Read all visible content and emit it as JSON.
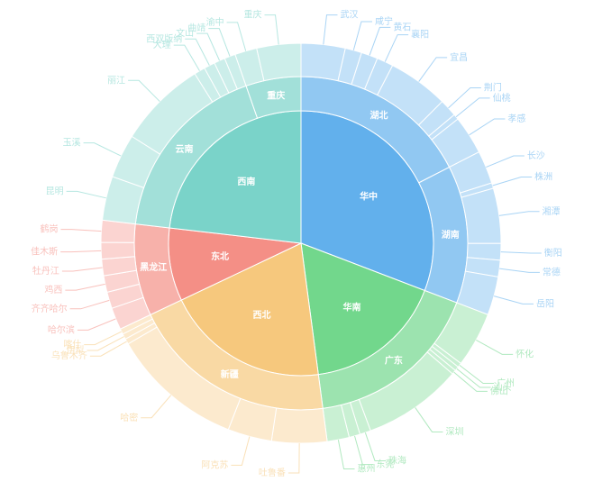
{
  "chart_data": {
    "type": "sunburst",
    "title": "",
    "colors": {
      "华中": "#62b0ec",
      "华南": "#72d78c",
      "西北": "#f6c87d",
      "东北": "#f48f86",
      "西南": "#7ad3c9"
    },
    "regions": [
      {
        "name": "华中",
        "provinces": [
          {
            "name": "湖北",
            "cities": [
              {
                "name": "武汉",
                "value": 4
              },
              {
                "name": "咸宁",
                "value": 1.5
              },
              {
                "name": "黄石",
                "value": 1.5
              },
              {
                "name": "襄阳",
                "value": 1.5
              },
              {
                "name": "宜昌",
                "value": 5.5
              },
              {
                "name": "荆门",
                "value": 1.6
              },
              {
                "name": "仙桃",
                "value": 0.5
              },
              {
                "name": "孝感",
                "value": 3.5
              }
            ]
          },
          {
            "name": "湖南",
            "cities": [
              {
                "name": "长沙",
                "value": 3
              },
              {
                "name": "株洲",
                "value": 0.5
              },
              {
                "name": "湘潭",
                "value": 5
              },
              {
                "name": "衡阳",
                "value": 1.5
              },
              {
                "name": "常德",
                "value": 1.5
              },
              {
                "name": "岳阳",
                "value": 3.5
              }
            ]
          }
        ]
      },
      {
        "name": "华南",
        "provinces": [
          {
            "name": "广东",
            "cities": [
              {
                "name": "怀化",
                "value": 5
              },
              {
                "name": "广州",
                "value": 0.4
              },
              {
                "name": "汕头",
                "value": 0.4
              },
              {
                "name": "佛山",
                "value": 0.4
              },
              {
                "name": "深圳",
                "value": 9
              },
              {
                "name": "珠海",
                "value": 1
              },
              {
                "name": "东莞",
                "value": 1
              },
              {
                "name": "惠州",
                "value": 2
              }
            ]
          }
        ]
      },
      {
        "name": "西北",
        "provinces": [
          {
            "name": "新疆",
            "cities": [
              {
                "name": "吐鲁番",
                "value": 5
              },
              {
                "name": "阿克苏",
                "value": 4
              },
              {
                "name": "哈密",
                "value": 12
              },
              {
                "name": "乌鲁木齐",
                "value": 0.5
              },
              {
                "name": "伊犁",
                "value": 0.5
              },
              {
                "name": "喀什",
                "value": 0.5
              }
            ]
          }
        ]
      },
      {
        "name": "东北",
        "provinces": [
          {
            "name": "黑龙江",
            "cities": [
              {
                "name": "哈尔滨",
                "value": 2
              },
              {
                "name": "齐齐哈尔",
                "value": 1.5
              },
              {
                "name": "鸡西",
                "value": 1.5
              },
              {
                "name": "牡丹江",
                "value": 1.5
              },
              {
                "name": "佳木斯",
                "value": 1.5
              },
              {
                "name": "鹤岗",
                "value": 2
              }
            ]
          }
        ]
      },
      {
        "name": "西南",
        "provinces": [
          {
            "name": "云南",
            "cities": [
              {
                "name": "昆明",
                "value": 4
              },
              {
                "name": "玉溪",
                "value": 4
              },
              {
                "name": "丽江",
                "value": 8
              },
              {
                "name": "大理",
                "value": 1
              },
              {
                "name": "西双版纳",
                "value": 1
              },
              {
                "name": "文山",
                "value": 1
              },
              {
                "name": "曲靖",
                "value": 1
              }
            ]
          },
          {
            "name": "重庆",
            "cities": [
              {
                "name": "渝中",
                "value": 2
              },
              {
                "name": "重庆",
                "value": 4
              }
            ]
          }
        ]
      }
    ]
  }
}
